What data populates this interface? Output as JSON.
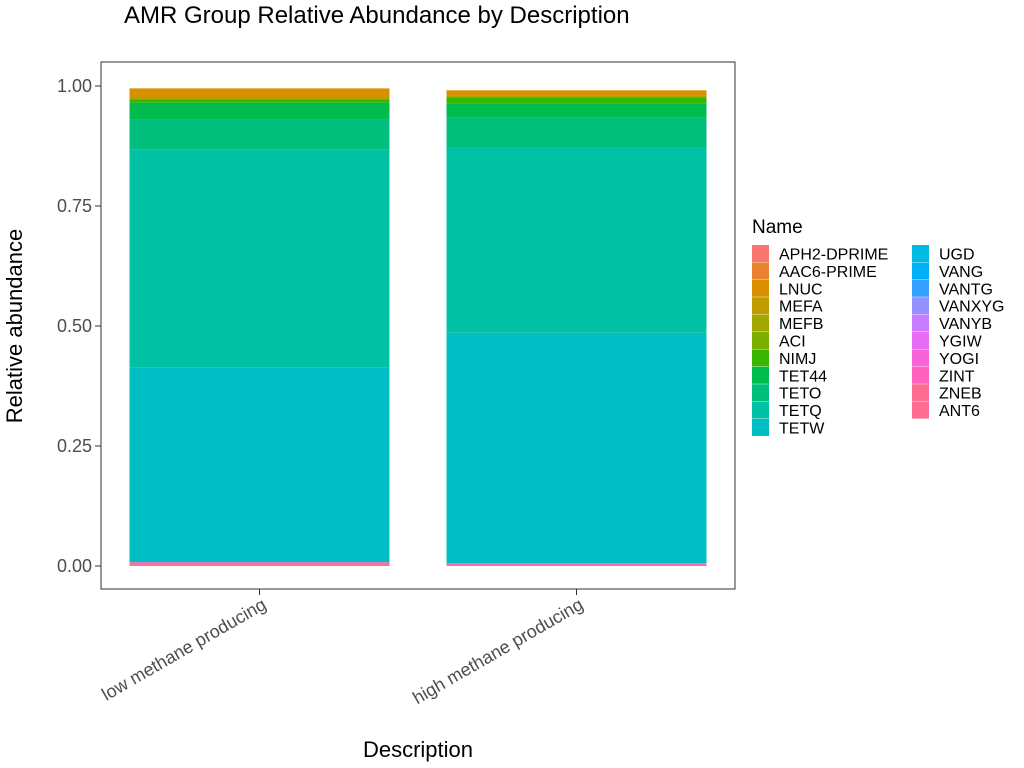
{
  "chart_data": {
    "type": "bar",
    "stacked": true,
    "title": "AMR Group Relative Abundance by Description",
    "xlabel": "Description",
    "ylabel": "Relative abundance",
    "ylim": [
      0,
      1
    ],
    "yticks": [
      "0.00",
      "0.25",
      "0.50",
      "0.75",
      "1.00"
    ],
    "ytick_values": [
      0,
      0.25,
      0.5,
      0.75,
      1.0
    ],
    "categories": [
      "low methane producing",
      "high methane producing"
    ],
    "legend_title": "Name",
    "legend_position": "right",
    "grid": false,
    "series": [
      {
        "name": "APH2-DPRIME",
        "color": "#F8766D",
        "values": [
          0.0,
          0.0
        ]
      },
      {
        "name": "AAC6-PRIME",
        "color": "#EA8331",
        "values": [
          0.0,
          0.0
        ]
      },
      {
        "name": "LNUC",
        "color": "#D89000",
        "values": [
          0.018,
          0.01
        ]
      },
      {
        "name": "MEFA",
        "color": "#C09B00",
        "values": [
          0.0,
          0.0
        ]
      },
      {
        "name": "MEFB",
        "color": "#A3A500",
        "values": [
          0.005,
          0.005
        ]
      },
      {
        "name": "ACI",
        "color": "#7CAE00",
        "values": [
          0.0,
          0.0
        ]
      },
      {
        "name": "NIMJ",
        "color": "#39B600",
        "values": [
          0.007,
          0.012
        ]
      },
      {
        "name": "TET44",
        "color": "#00BB4E",
        "values": [
          0.035,
          0.03
        ]
      },
      {
        "name": "TETO",
        "color": "#00BF7D",
        "values": [
          0.062,
          0.063
        ]
      },
      {
        "name": "TETQ",
        "color": "#00C1A3",
        "values": [
          0.455,
          0.385
        ]
      },
      {
        "name": "TETW",
        "color": "#00BFC4",
        "values": [
          0.405,
          0.48
        ]
      },
      {
        "name": "UGD",
        "color": "#00BAE0",
        "values": [
          0.0,
          0.0
        ]
      },
      {
        "name": "VANG",
        "color": "#00B0F6",
        "values": [
          0.0,
          0.0
        ]
      },
      {
        "name": "VANTG",
        "color": "#35A2FF",
        "values": [
          0.0,
          0.0
        ]
      },
      {
        "name": "VANXYG",
        "color": "#9590FF",
        "values": [
          0.0,
          0.0
        ]
      },
      {
        "name": "VANYB",
        "color": "#C77CFF",
        "values": [
          0.0,
          0.0
        ]
      },
      {
        "name": "YGIW",
        "color": "#E76BF3",
        "values": [
          0.0,
          0.0
        ]
      },
      {
        "name": "YOGI",
        "color": "#FA62DB",
        "values": [
          0.0,
          0.0
        ]
      },
      {
        "name": "ZINT",
        "color": "#FF62BC",
        "values": [
          0.004,
          0.003
        ]
      },
      {
        "name": "ZNEB",
        "color": "#FF6C91",
        "values": [
          0.003,
          0.002
        ]
      },
      {
        "name": "ANT6",
        "color": "#FF6C91",
        "values": [
          0.001,
          0.001
        ]
      }
    ]
  }
}
